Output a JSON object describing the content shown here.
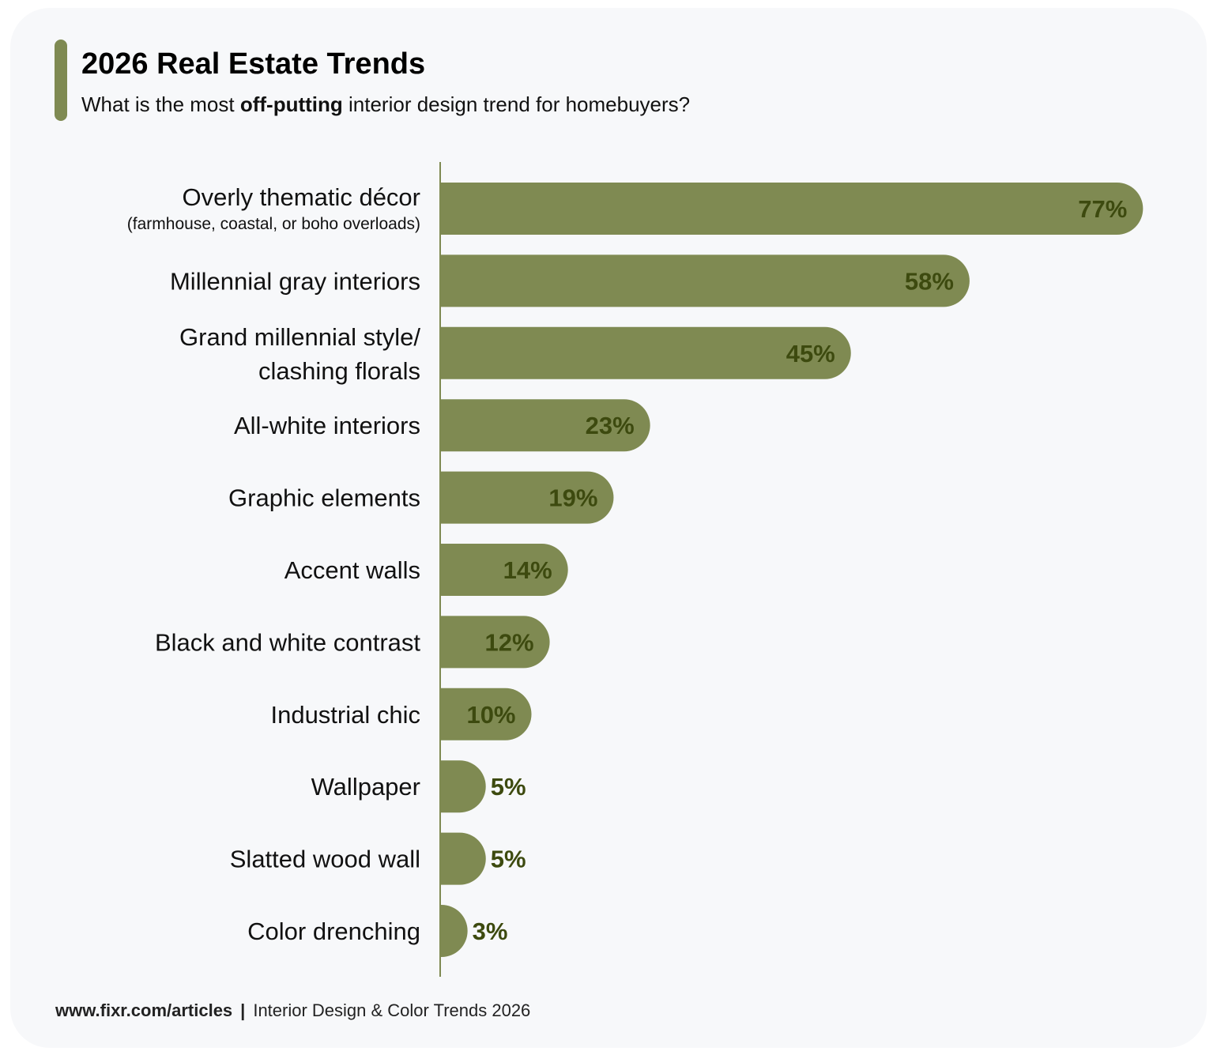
{
  "header": {
    "title": "2026 Real Estate Trends",
    "subtitle_pre": "What is the most ",
    "subtitle_bold": "off-putting",
    "subtitle_post": " interior design trend for homebuyers?"
  },
  "footer": {
    "url": "www.fixr.com/articles",
    "separator": "|",
    "source": "Interior Design & Color Trends 2026"
  },
  "colors": {
    "bar": "#7f8a52",
    "value_label": "#3d4a0f",
    "accent": "#7f8a52",
    "background": "#f7f8fa"
  },
  "chart_data": {
    "type": "bar",
    "orientation": "horizontal",
    "categories": [
      {
        "label": [
          "Overly thematic décor"
        ],
        "sublabel": "(farmhouse, coastal, or boho overloads)"
      },
      {
        "label": [
          "Millennial gray interiors"
        ]
      },
      {
        "label": [
          "Grand millennial style/",
          "clashing florals"
        ]
      },
      {
        "label": [
          "All-white interiors"
        ]
      },
      {
        "label": [
          "Graphic elements"
        ]
      },
      {
        "label": [
          "Accent walls"
        ]
      },
      {
        "label": [
          "Black and white contrast"
        ]
      },
      {
        "label": [
          "Industrial chic"
        ]
      },
      {
        "label": [
          "Wallpaper"
        ]
      },
      {
        "label": [
          "Slatted wood wall"
        ]
      },
      {
        "label": [
          "Color drenching"
        ]
      }
    ],
    "values": [
      77,
      58,
      45,
      23,
      19,
      14,
      12,
      10,
      5,
      5,
      3
    ],
    "value_labels": [
      "77%",
      "58%",
      "45%",
      "23%",
      "19%",
      "14%",
      "12%",
      "10%",
      "5%",
      "5%",
      "3%"
    ],
    "unit": "%",
    "grid": false,
    "legend": "none"
  }
}
